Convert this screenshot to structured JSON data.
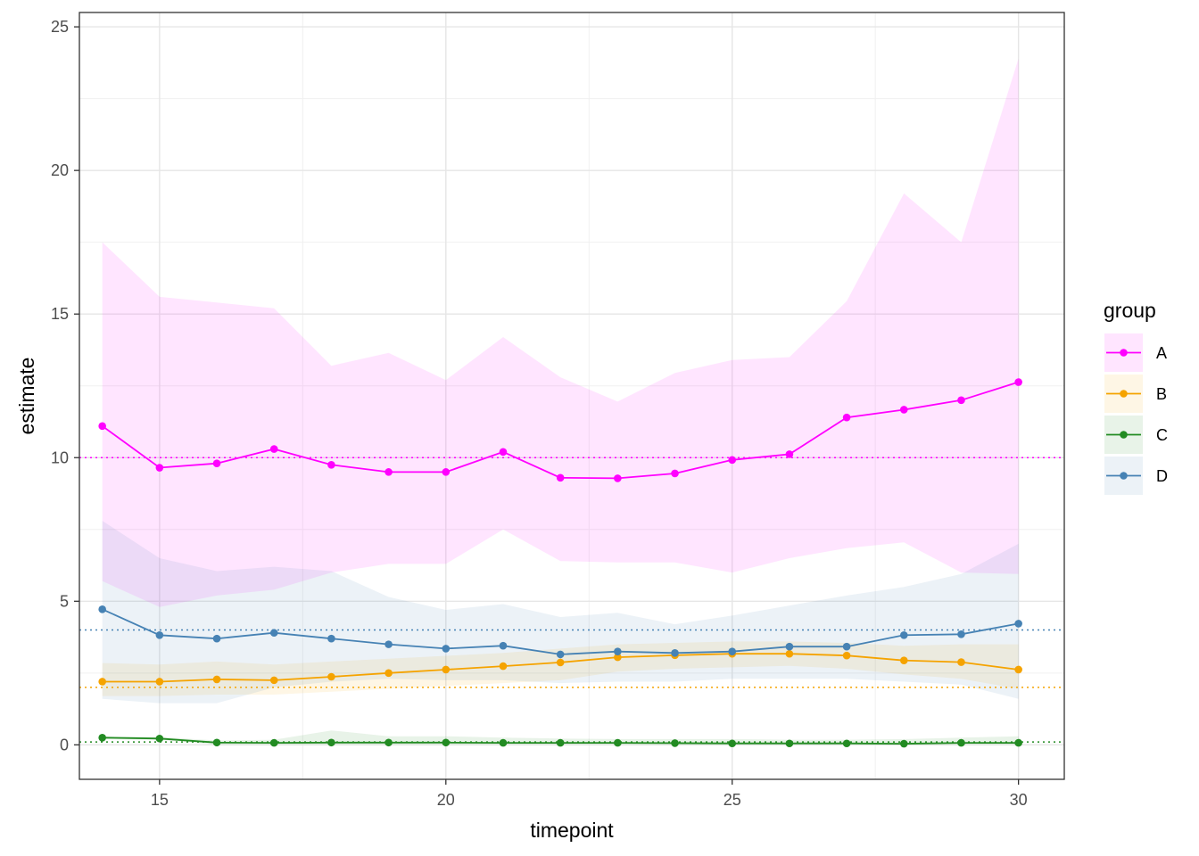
{
  "chart_data": {
    "type": "line",
    "xlabel": "timepoint",
    "ylabel": "estimate",
    "xlim": [
      13.6,
      30.8
    ],
    "ylim": [
      -1.2,
      25.5
    ],
    "xticks": [
      15,
      20,
      25,
      30
    ],
    "yticks": [
      0,
      5,
      10,
      15,
      20,
      25
    ],
    "grid": true,
    "legend": {
      "title": "group",
      "position": "right"
    },
    "x": [
      14,
      15,
      16,
      17,
      18,
      19,
      20,
      21,
      22,
      23,
      24,
      25,
      26,
      27,
      28,
      29,
      30
    ],
    "series": [
      {
        "name": "A",
        "color": "#ff00ff",
        "reference": 10,
        "values": [
          11.1,
          9.65,
          9.8,
          10.3,
          9.75,
          9.5,
          9.5,
          10.2,
          9.3,
          9.28,
          9.45,
          9.92,
          10.12,
          11.4,
          11.67,
          12.0,
          12.63
        ],
        "lower": [
          5.7,
          4.8,
          5.2,
          5.4,
          6.0,
          6.3,
          6.3,
          7.5,
          6.4,
          6.35,
          6.35,
          6.0,
          6.5,
          6.85,
          7.05,
          6.0,
          5.95
        ],
        "upper": [
          17.5,
          15.6,
          15.4,
          15.2,
          13.2,
          13.65,
          12.7,
          14.2,
          12.8,
          11.95,
          12.95,
          13.4,
          13.5,
          15.45,
          19.2,
          17.5,
          23.9
        ]
      },
      {
        "name": "B",
        "color": "#f5a300",
        "reference": 2,
        "values": [
          2.2,
          2.2,
          2.28,
          2.25,
          2.37,
          2.5,
          2.62,
          2.74,
          2.87,
          3.05,
          3.12,
          3.17,
          3.17,
          3.11,
          2.94,
          2.88,
          2.62
        ],
        "lower": [
          1.7,
          1.7,
          1.75,
          1.75,
          1.85,
          1.95,
          2.05,
          2.15,
          2.25,
          2.55,
          2.65,
          2.7,
          2.75,
          2.65,
          2.45,
          2.3,
          1.95
        ],
        "upper": [
          2.85,
          2.8,
          2.9,
          2.8,
          2.9,
          3.0,
          3.1,
          3.2,
          3.35,
          3.5,
          3.55,
          3.6,
          3.6,
          3.55,
          3.45,
          3.5,
          3.5
        ]
      },
      {
        "name": "C",
        "color": "#228b22",
        "reference": 0.1,
        "values": [
          0.25,
          0.22,
          0.08,
          0.07,
          0.08,
          0.08,
          0.08,
          0.07,
          0.07,
          0.07,
          0.06,
          0.05,
          0.05,
          0.05,
          0.04,
          0.07,
          0.07
        ],
        "lower": [
          0.2,
          0.18,
          0.0,
          0.0,
          0.0,
          0.0,
          0.0,
          0.0,
          0.0,
          0.0,
          0.0,
          0.0,
          0.0,
          0.0,
          0.0,
          0.0,
          0.0
        ],
        "upper": [
          0.3,
          0.28,
          0.15,
          0.18,
          0.5,
          0.3,
          0.3,
          0.25,
          0.22,
          0.2,
          0.2,
          0.2,
          0.18,
          0.18,
          0.2,
          0.25,
          0.3
        ]
      },
      {
        "name": "D",
        "color": "#4682b4",
        "reference": 4,
        "values": [
          4.72,
          3.82,
          3.7,
          3.9,
          3.7,
          3.5,
          3.35,
          3.45,
          3.15,
          3.25,
          3.2,
          3.25,
          3.42,
          3.42,
          3.82,
          3.85,
          4.22
        ],
        "lower": [
          1.6,
          1.45,
          1.45,
          2.0,
          2.2,
          2.3,
          2.25,
          2.25,
          2.15,
          2.2,
          2.2,
          2.3,
          2.3,
          2.3,
          2.2,
          2.1,
          1.6
        ],
        "upper": [
          7.8,
          6.5,
          6.05,
          6.2,
          6.05,
          5.15,
          4.7,
          4.9,
          4.45,
          4.6,
          4.2,
          4.5,
          4.85,
          5.2,
          5.5,
          5.95,
          7.0
        ]
      }
    ]
  }
}
